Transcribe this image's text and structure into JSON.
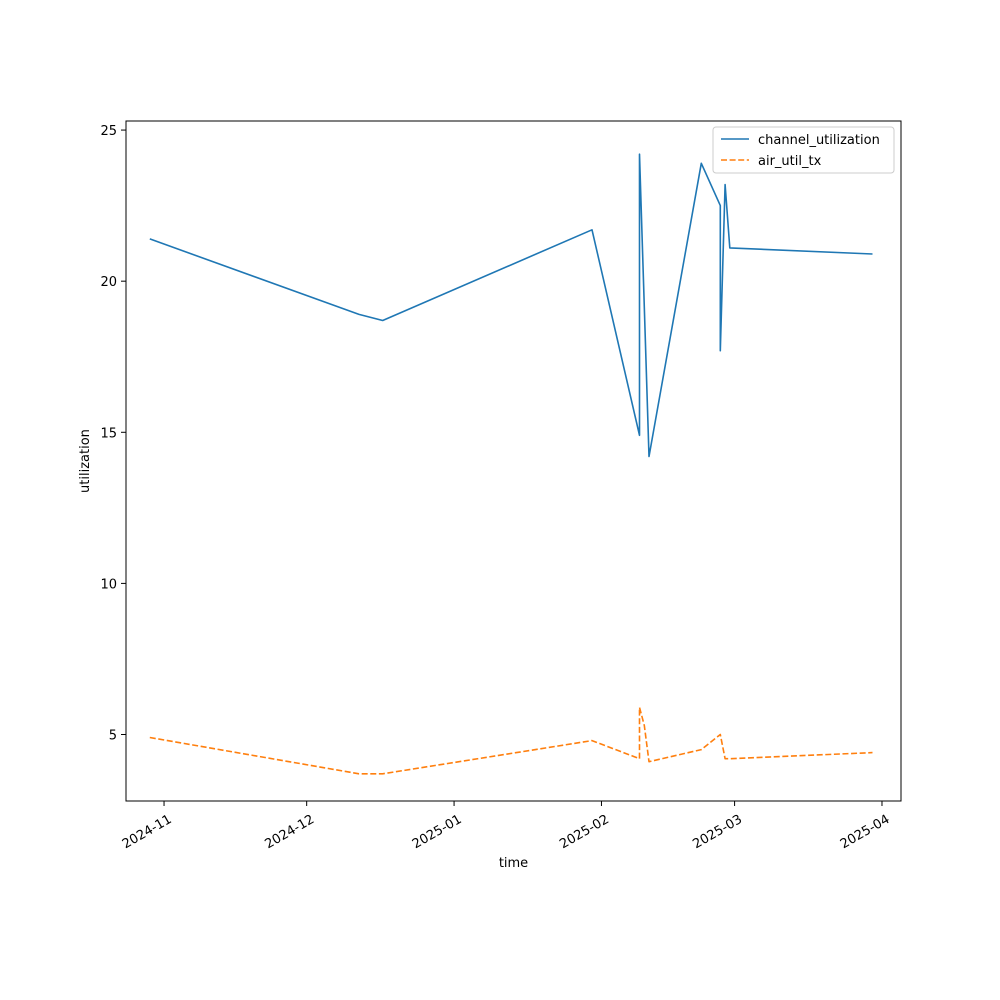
{
  "chart_data": {
    "type": "line",
    "title": "",
    "xlabel": "time",
    "ylabel": "utilization",
    "xlim": [
      "2024-10-24",
      "2025-04-05"
    ],
    "ylim": [
      2.8,
      25.3
    ],
    "x_ticks": [
      "2024-11-01",
      "2024-12-01",
      "2025-01-01",
      "2025-02-01",
      "2025-03-01",
      "2025-04-01"
    ],
    "x_tick_labels": [
      "2024-11",
      "2024-12",
      "2025-01",
      "2025-02",
      "2025-03",
      "2025-04"
    ],
    "y_ticks": [
      5,
      10,
      15,
      20,
      25
    ],
    "y_tick_labels": [
      "5",
      "10",
      "15",
      "20",
      "25"
    ],
    "grid": false,
    "legend_position": "top-right",
    "series": [
      {
        "name": "channel_utilization",
        "color": "#1f77b4",
        "style": "solid",
        "points": [
          [
            "2024-10-29",
            21.4
          ],
          [
            "2024-12-12",
            18.9
          ],
          [
            "2024-12-17",
            18.7
          ],
          [
            "2025-01-30",
            21.7
          ],
          [
            "2025-02-09",
            14.9
          ],
          [
            "2025-02-09",
            24.2
          ],
          [
            "2025-02-11",
            14.2
          ],
          [
            "2025-02-22",
            23.9
          ],
          [
            "2025-02-26",
            22.5
          ],
          [
            "2025-02-26",
            17.7
          ],
          [
            "2025-02-27",
            23.2
          ],
          [
            "2025-02-28",
            21.1
          ],
          [
            "2025-03-30",
            20.9
          ]
        ]
      },
      {
        "name": "air_util_tx",
        "color": "#ff7f0e",
        "style": "dashed",
        "points": [
          [
            "2024-10-29",
            4.9
          ],
          [
            "2024-12-12",
            3.7
          ],
          [
            "2024-12-17",
            3.7
          ],
          [
            "2025-01-30",
            4.8
          ],
          [
            "2025-02-09",
            4.2
          ],
          [
            "2025-02-09",
            5.9
          ],
          [
            "2025-02-10",
            5.3
          ],
          [
            "2025-02-11",
            4.1
          ],
          [
            "2025-02-22",
            4.5
          ],
          [
            "2025-02-26",
            5.0
          ],
          [
            "2025-02-27",
            4.2
          ],
          [
            "2025-02-28",
            4.2
          ],
          [
            "2025-03-30",
            4.4
          ]
        ]
      }
    ]
  }
}
